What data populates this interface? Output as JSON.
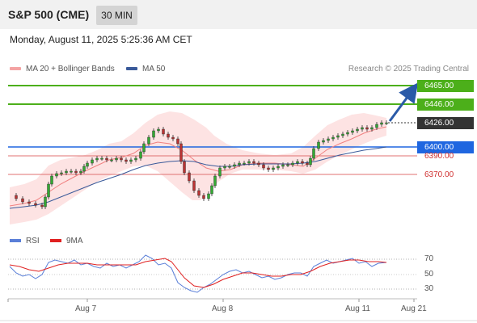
{
  "header": {
    "title": "S&P 500 (CME)",
    "timeframe": "30 MIN"
  },
  "datetime": "Monday, August 11, 2025 5:25:36 AM CET",
  "legend": {
    "ma20_label": "MA 20 + Bollinger Bands",
    "ma50_label": "MA 50",
    "ma20_color": "#f08080",
    "ma50_color": "#3a5a9a"
  },
  "credit": "Research © 2025 Trading Central",
  "levels": {
    "target2": "6465.00",
    "target1": "6446.00",
    "last": "6426.00",
    "pivot": "6400.00",
    "support1": "6390.00",
    "support2": "6370.00",
    "target_color": "#4caf1a",
    "pivot_color": "#1f66e0",
    "support_color": "#d03030",
    "last_color": "#333333"
  },
  "rsi": {
    "rsi_label": "RSI",
    "ma_label": "9MA",
    "rsi_color": "#5a7fd8",
    "ma_color": "#e02020",
    "ticks": [
      "70",
      "50",
      "30"
    ]
  },
  "x_axis": {
    "labels": [
      "Aug 7",
      "Aug 8",
      "Aug 11",
      "Aug 21"
    ]
  }
}
